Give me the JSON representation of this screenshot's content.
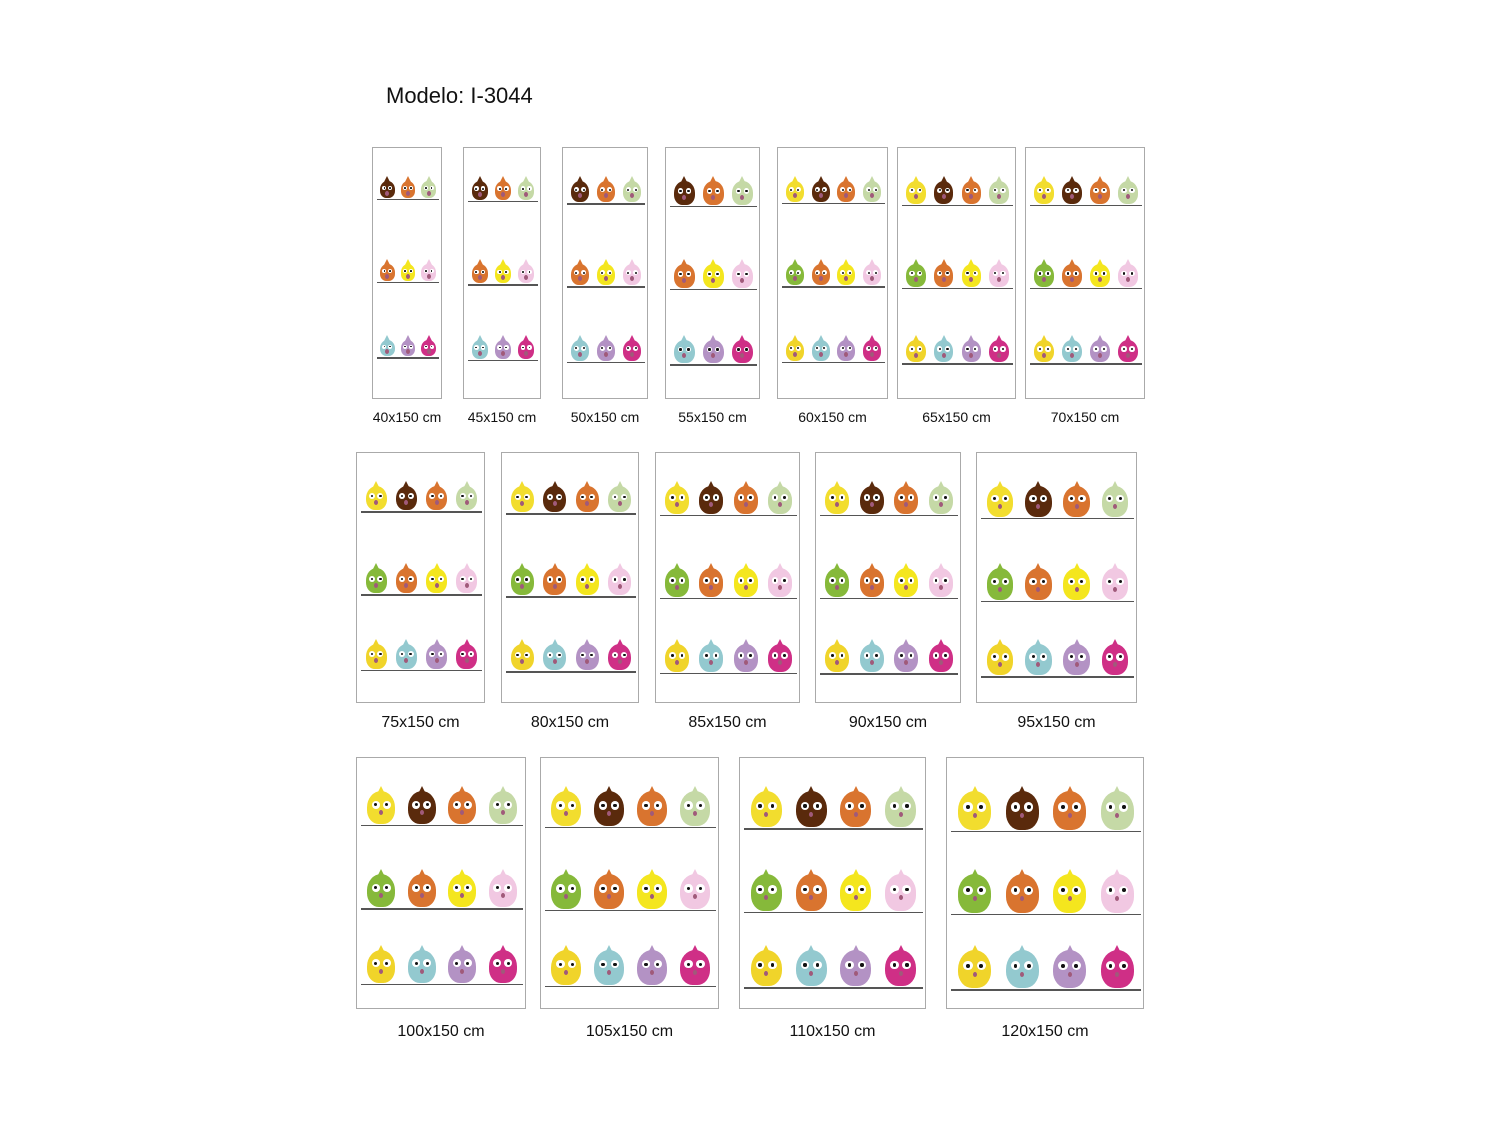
{
  "title": "Modelo: I-3044",
  "bird_rows": [
    [
      "#f2dd2e",
      "#5a2a0c",
      "#d9742f",
      "#c5d9a6"
    ],
    [
      "#86b93a",
      "#d9742f",
      "#f4e61e",
      "#f1c8e2"
    ],
    [
      "#f0d42a",
      "#93c9cf",
      "#b392c4",
      "#cf2f86"
    ]
  ],
  "panels": [
    {
      "label": "40x150 cm"
    },
    {
      "label": "45x150 cm"
    },
    {
      "label": "50x150 cm"
    },
    {
      "label": "55x150 cm"
    },
    {
      "label": "60x150 cm"
    },
    {
      "label": "65x150 cm"
    },
    {
      "label": "70x150 cm"
    },
    {
      "label": "75x150 cm"
    },
    {
      "label": "80x150 cm"
    },
    {
      "label": "85x150 cm"
    },
    {
      "label": "90x150 cm"
    },
    {
      "label": "95x150 cm"
    },
    {
      "label": "100x150 cm"
    },
    {
      "label": "105x150 cm"
    },
    {
      "label": "110x150 cm"
    },
    {
      "label": "120x150 cm"
    }
  ]
}
